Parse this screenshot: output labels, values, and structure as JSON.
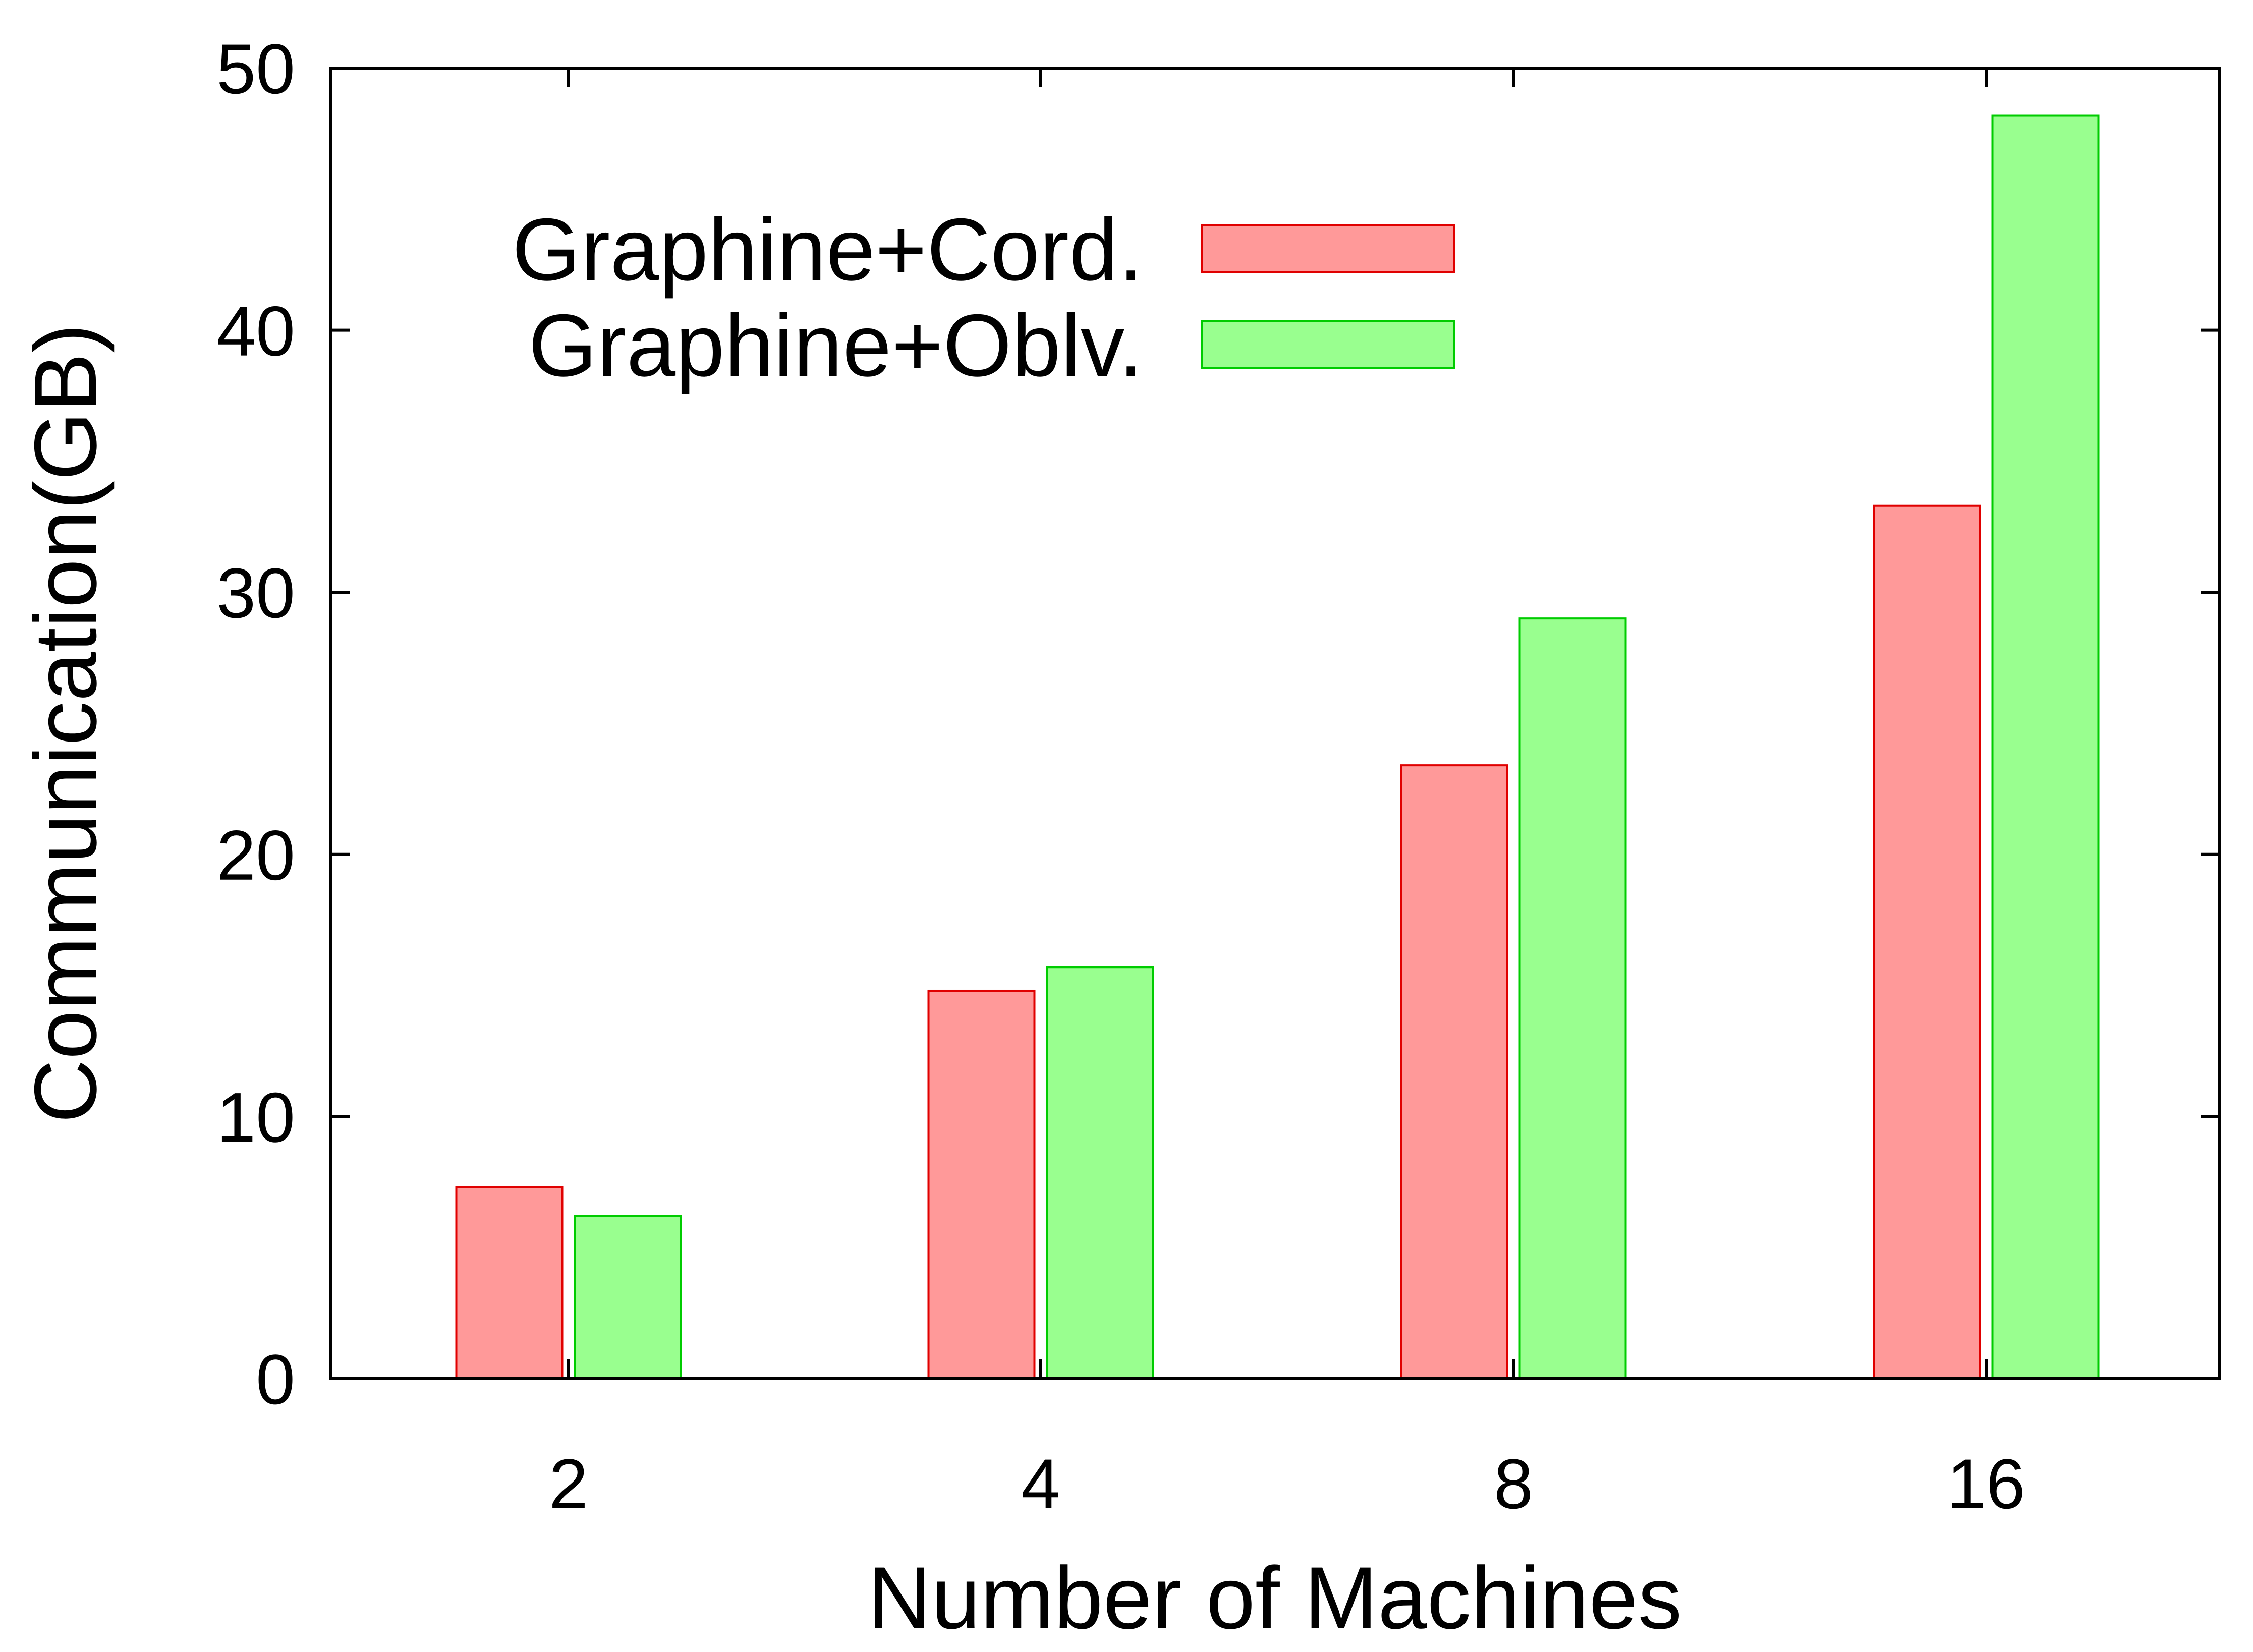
{
  "chart_data": {
    "type": "bar",
    "xlabel": "Number of Machines",
    "ylabel": "Communication(GB)",
    "categories": [
      "2",
      "4",
      "8",
      "16"
    ],
    "yticks": [
      "0",
      "10",
      "20",
      "30",
      "40",
      "50"
    ],
    "ylim": [
      0,
      50
    ],
    "grid": false,
    "legend_position": "top-left",
    "series": [
      {
        "name": "Graphine+Cord.",
        "values": [
          7.3,
          14.8,
          23.4,
          33.3
        ],
        "color": "#ff9999",
        "stroke": "#e00000"
      },
      {
        "name": "Graphine+Oblv.",
        "values": [
          6.2,
          15.7,
          29.0,
          48.2
        ],
        "color": "#99ff8f",
        "stroke": "#00cc00"
      }
    ]
  }
}
